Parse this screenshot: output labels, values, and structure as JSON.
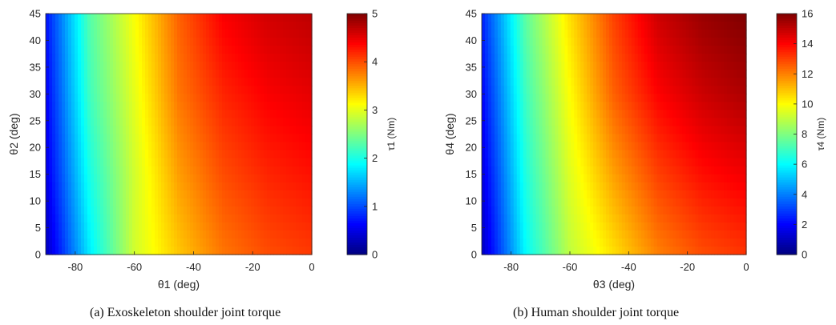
{
  "chart_data": [
    {
      "type": "heatmap",
      "colormap": "jet",
      "caption": "(a)  Exoskeleton shoulder joint torque",
      "xlabel": "θ1 (deg)",
      "ylabel": "θ2 (deg)",
      "colorbar_label": "τ1 (Nm)",
      "xlim": [
        -90,
        0
      ],
      "ylim": [
        0,
        45
      ],
      "clim": [
        0,
        5
      ],
      "xticks": [
        "-80",
        "-60",
        "-40",
        "-20",
        "0"
      ],
      "xtick_values": [
        -80,
        -60,
        -40,
        -20,
        0
      ],
      "yticks": [
        "0",
        "5",
        "10",
        "15",
        "20",
        "25",
        "30",
        "35",
        "40",
        "45"
      ],
      "ytick_values": [
        0,
        5,
        10,
        15,
        20,
        25,
        30,
        35,
        40,
        45
      ],
      "cticks": [
        "0",
        "1",
        "2",
        "3",
        "4",
        "5"
      ],
      "ctick_values": [
        0,
        1,
        2,
        3,
        4,
        5
      ],
      "grid_x": [
        -90,
        -75,
        -60,
        -45,
        -30,
        -15,
        0
      ],
      "grid_y": [
        0,
        15,
        30,
        45
      ],
      "values": [
        [
          0.3,
          1.8,
          2.9,
          3.4,
          3.8,
          4.0,
          4.1
        ],
        [
          0.5,
          2.0,
          2.9,
          3.6,
          4.0,
          4.2,
          4.3
        ],
        [
          0.6,
          2.2,
          3.0,
          3.8,
          4.2,
          4.4,
          4.5
        ],
        [
          0.7,
          2.3,
          3.1,
          3.9,
          4.4,
          4.6,
          4.7
        ]
      ]
    },
    {
      "type": "heatmap",
      "colormap": "jet",
      "caption": "(b)  Human shoulder joint torque",
      "xlabel": "θ3 (deg)",
      "ylabel": "θ4 (deg)",
      "colorbar_label": "τ4 (Nm)",
      "xlim": [
        -90,
        0
      ],
      "ylim": [
        0,
        45
      ],
      "clim": [
        0,
        16
      ],
      "xticks": [
        "-80",
        "-60",
        "-40",
        "-20",
        "0"
      ],
      "xtick_values": [
        -80,
        -60,
        -40,
        -20,
        0
      ],
      "yticks": [
        "0",
        "5",
        "10",
        "15",
        "20",
        "25",
        "30",
        "35",
        "40",
        "45"
      ],
      "ytick_values": [
        0,
        5,
        10,
        15,
        20,
        25,
        30,
        35,
        40,
        45
      ],
      "cticks": [
        "0",
        "2",
        "4",
        "6",
        "8",
        "10",
        "12",
        "14",
        "16"
      ],
      "ctick_values": [
        0,
        2,
        4,
        6,
        8,
        10,
        12,
        14,
        16
      ],
      "grid_x": [
        -90,
        -75,
        -60,
        -45,
        -30,
        -15,
        0
      ],
      "grid_y": [
        0,
        15,
        30,
        45
      ],
      "values": [
        [
          1.0,
          6.0,
          9.0,
          10.5,
          12.0,
          12.8,
          13.2
        ],
        [
          1.5,
          6.5,
          9.5,
          11.5,
          13.0,
          13.8,
          14.2
        ],
        [
          2.0,
          7.0,
          10.0,
          12.5,
          14.0,
          14.8,
          15.3
        ],
        [
          2.5,
          7.5,
          10.5,
          13.0,
          14.8,
          15.6,
          16.0
        ]
      ]
    }
  ]
}
